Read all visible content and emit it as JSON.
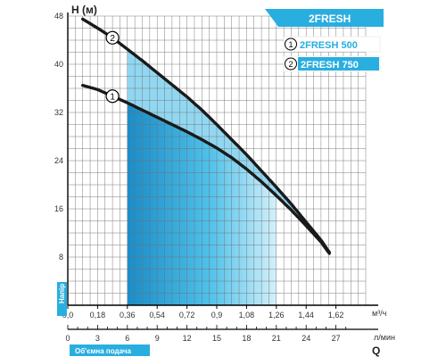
{
  "chart_data": {
    "type": "line",
    "y_axis": {
      "label": "H (м)",
      "ticks": [
        "0",
        "8",
        "16",
        "24",
        "32",
        "40",
        "48"
      ],
      "range": [
        0,
        48
      ]
    },
    "x_axis_primary": {
      "unit": "м³/ч",
      "ticks": [
        "0,0",
        "0,18",
        "0,36",
        "0,54",
        "0,72",
        "0,9",
        "1,08",
        "1,26",
        "1,44",
        "1,62"
      ],
      "range": [
        0,
        1.8
      ]
    },
    "x_axis_secondary": {
      "unit": "л/мин",
      "ticks": [
        "0",
        "3",
        "6",
        "9",
        "12",
        "15",
        "18",
        "21",
        "24",
        "27"
      ],
      "range": [
        0,
        30
      ]
    },
    "x_label_left": "Об'ємна подача",
    "x_label_right": "Q",
    "y_side_label": "Напір",
    "badge_title": "2FRESH",
    "legend_position": "top-right",
    "series": [
      {
        "name": "2FRESH 500",
        "marker": "1",
        "x": [
          0.09,
          0.18,
          0.27,
          0.36,
          0.45,
          0.54,
          0.63,
          0.72,
          0.81,
          0.9,
          0.99,
          1.08,
          1.17,
          1.26,
          1.35,
          1.44,
          1.53,
          1.58
        ],
        "y": [
          36.5,
          35.8,
          34.7,
          33.6,
          32.4,
          31.2,
          30.0,
          28.8,
          27.5,
          26.1,
          24.5,
          22.6,
          20.5,
          18.2,
          15.8,
          13.2,
          10.5,
          8.6
        ]
      },
      {
        "name": "2FRESH 750",
        "marker": "2",
        "x": [
          0.09,
          0.18,
          0.27,
          0.36,
          0.45,
          0.54,
          0.63,
          0.72,
          0.81,
          0.9,
          0.99,
          1.08,
          1.17,
          1.26,
          1.35,
          1.44,
          1.53,
          1.58
        ],
        "y": [
          47.5,
          46.0,
          44.4,
          42.5,
          40.6,
          38.6,
          36.6,
          34.6,
          32.4,
          30.0,
          27.5,
          25.0,
          22.3,
          19.6,
          16.8,
          13.8,
          10.8,
          8.8
        ]
      }
    ],
    "shaded_range": [
      0.36,
      1.26
    ],
    "colors": {
      "curve": "#1a1a1a",
      "accent": "#29aee0",
      "fill_dark": "#1e8fc9",
      "fill_light": "#bfe7f6",
      "grid": "#6f6f6f"
    }
  }
}
